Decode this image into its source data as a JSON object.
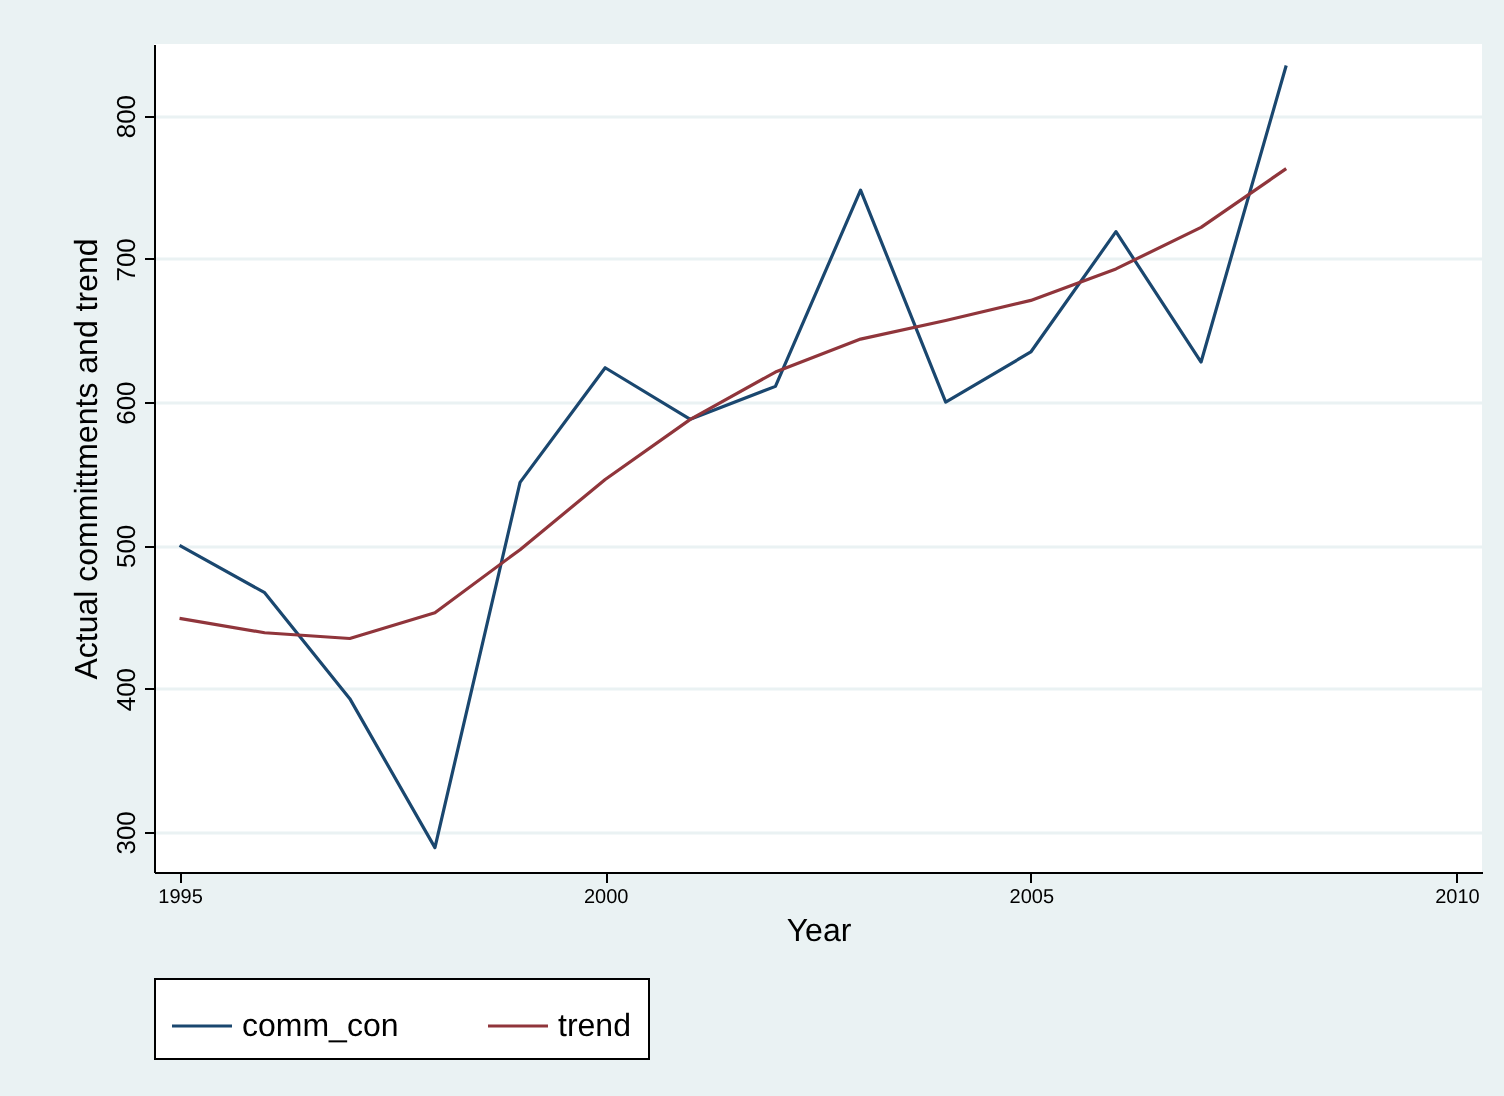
{
  "chart_data": {
    "type": "line",
    "xlabel": "Year",
    "ylabel": "Actual committments and trend",
    "x": [
      1995,
      1996,
      1997,
      1998,
      1999,
      2000,
      2001,
      2002,
      2003,
      2004,
      2005,
      2006,
      2007,
      2008
    ],
    "series": [
      {
        "name": "comm_con",
        "color": "#1a476f",
        "values": [
          500,
          467,
          393,
          289,
          544,
          624,
          588,
          611,
          748,
          600,
          635,
          719,
          628,
          835
        ]
      },
      {
        "name": "trend",
        "color": "#90353b",
        "values": [
          449,
          439,
          435,
          453,
          497,
          546,
          588,
          621,
          644,
          657,
          671,
          693,
          722,
          763
        ]
      }
    ],
    "xlim": [
      1994.7,
      2010.3
    ],
    "xticks": [
      1995,
      2000,
      2005,
      2010
    ],
    "ylim": [
      272,
      850
    ],
    "yticks": [
      300,
      400,
      500,
      600,
      700,
      800
    ],
    "grid": "y",
    "legend": "bottom",
    "marker": "none",
    "line_style": "solid"
  }
}
